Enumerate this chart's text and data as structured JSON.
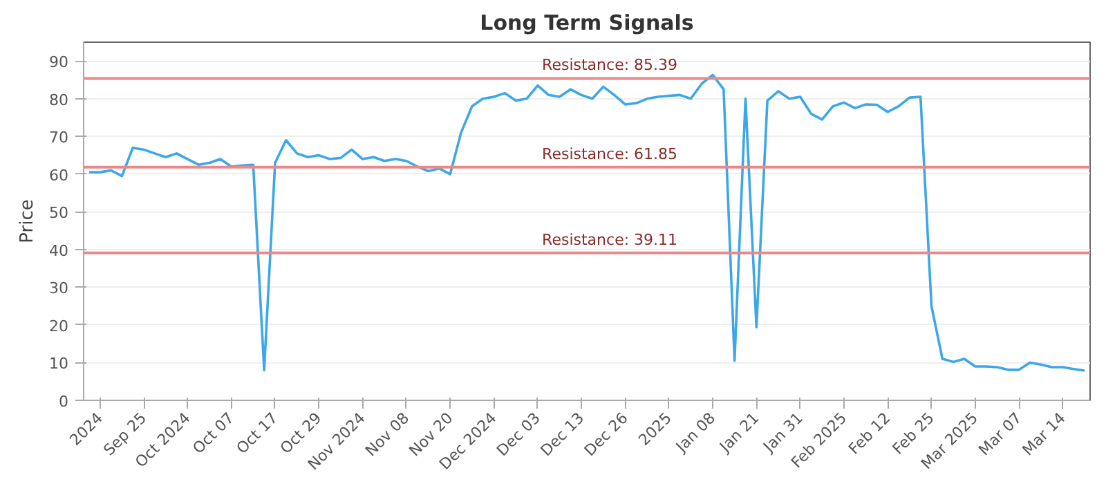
{
  "chart_data": {
    "type": "line",
    "title": "Long Term Signals",
    "ylabel": "Price",
    "categories": [
      null,
      "2024",
      null,
      null,
      null,
      "Sep 25",
      null,
      null,
      null,
      "Oct 2024",
      null,
      null,
      null,
      "Oct 07",
      null,
      null,
      null,
      "Oct 17",
      null,
      null,
      null,
      "Oct 29",
      null,
      null,
      null,
      "Nov 2024",
      null,
      null,
      null,
      "Nov 08",
      null,
      null,
      null,
      "Nov 20",
      null,
      null,
      null,
      "Dec 2024",
      null,
      null,
      null,
      "Dec 03",
      null,
      null,
      null,
      "Dec 13",
      null,
      null,
      null,
      "Dec 26",
      null,
      null,
      null,
      "2025",
      null,
      null,
      null,
      "Jan 08",
      null,
      null,
      null,
      "Jan 21",
      null,
      null,
      null,
      "Jan 31",
      null,
      null,
      null,
      "Feb 2025",
      null,
      null,
      null,
      "Feb 12",
      null,
      null,
      null,
      "Feb 25",
      null,
      null,
      null,
      "Mar 2025",
      null,
      null,
      null,
      "Mar 07",
      null,
      null,
      null,
      "Mar 14",
      null,
      null
    ],
    "series": [
      {
        "color": "#3ea7e8",
        "values": [
          60.5,
          60.5,
          61,
          59.5,
          67,
          66.5,
          65.5,
          64.5,
          65.5,
          64,
          62.5,
          63,
          64,
          62,
          62.3,
          62.5,
          8,
          63,
          69,
          65.5,
          64.5,
          65,
          64,
          64.3,
          66.5,
          64,
          64.5,
          63.5,
          64,
          63.5,
          62,
          60.8,
          61.5,
          60,
          71,
          78,
          80,
          80.5,
          81.5,
          79.5,
          80,
          83.5,
          81,
          80.5,
          82.5,
          81,
          80,
          83.2,
          81,
          78.5,
          78.8,
          80,
          80.5,
          80.8,
          81,
          80,
          84,
          86.3,
          82.5,
          10.5,
          80,
          19.4,
          79.5,
          82,
          80,
          80.5,
          76,
          74.5,
          78,
          79,
          77.5,
          78.5,
          78.4,
          76.5,
          78,
          80.3,
          80.5,
          25,
          11,
          10.2,
          11,
          9,
          9,
          8.8,
          8.1,
          8.1,
          10,
          9.5,
          8.8,
          8.8,
          8.3,
          7.9
        ]
      }
    ],
    "ylim": [
      0,
      95
    ],
    "yticks": [
      0,
      10,
      20,
      30,
      40,
      50,
      60,
      70,
      80,
      90
    ],
    "grid": "y",
    "marker": "none",
    "line_style": "solid",
    "ref_lines": [
      {
        "axis": "y",
        "value": 85.39,
        "label": "Resistance: 85.39",
        "color": "#e88a8a"
      },
      {
        "axis": "y",
        "value": 61.85,
        "label": "Resistance: 61.85",
        "color": "#e88a8a"
      },
      {
        "axis": "y",
        "value": 39.11,
        "label": "Resistance: 39.11",
        "color": "#e88a8a"
      }
    ]
  }
}
